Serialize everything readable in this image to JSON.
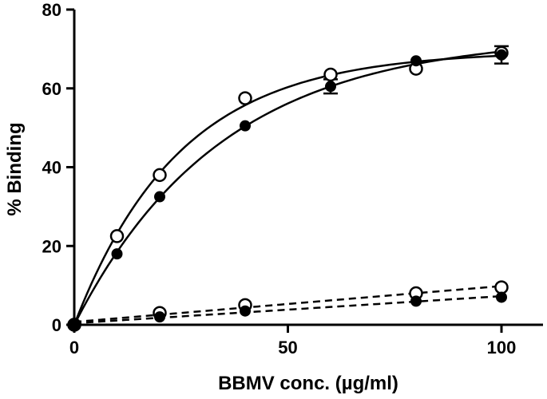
{
  "chart_data": {
    "type": "scatter",
    "title": "",
    "xlabel": "BBMV conc. (µg/ml)",
    "ylabel": "% Binding",
    "xlim": [
      0,
      110
    ],
    "ylim": [
      0,
      80
    ],
    "xticks": [
      0,
      50,
      100
    ],
    "yticks": [
      0,
      20,
      40,
      60,
      80
    ],
    "grid": false,
    "legend": "none",
    "series": [
      {
        "marker": "open-circle",
        "line": "solid",
        "x": [
          0,
          10,
          20,
          40,
          60,
          80,
          100
        ],
        "y": [
          0,
          22.5,
          38,
          57.5,
          63.5,
          65,
          69
        ]
      },
      {
        "marker": "filled-circle",
        "line": "solid",
        "x": [
          0,
          10,
          20,
          40,
          60,
          80,
          100
        ],
        "y": [
          0,
          18,
          32.5,
          50.5,
          60.5,
          67,
          68.5
        ],
        "error": [
          0,
          0,
          0,
          0,
          1.8,
          0,
          2.2
        ]
      },
      {
        "marker": "open-circle",
        "line": "dashed",
        "x": [
          0,
          20,
          40,
          80,
          100
        ],
        "y": [
          0,
          3,
          5,
          8,
          9.5
        ]
      },
      {
        "marker": "filled-circle",
        "line": "dashed",
        "x": [
          0,
          20,
          40,
          80,
          100
        ],
        "y": [
          0,
          2,
          3.5,
          6,
          7
        ]
      }
    ]
  }
}
